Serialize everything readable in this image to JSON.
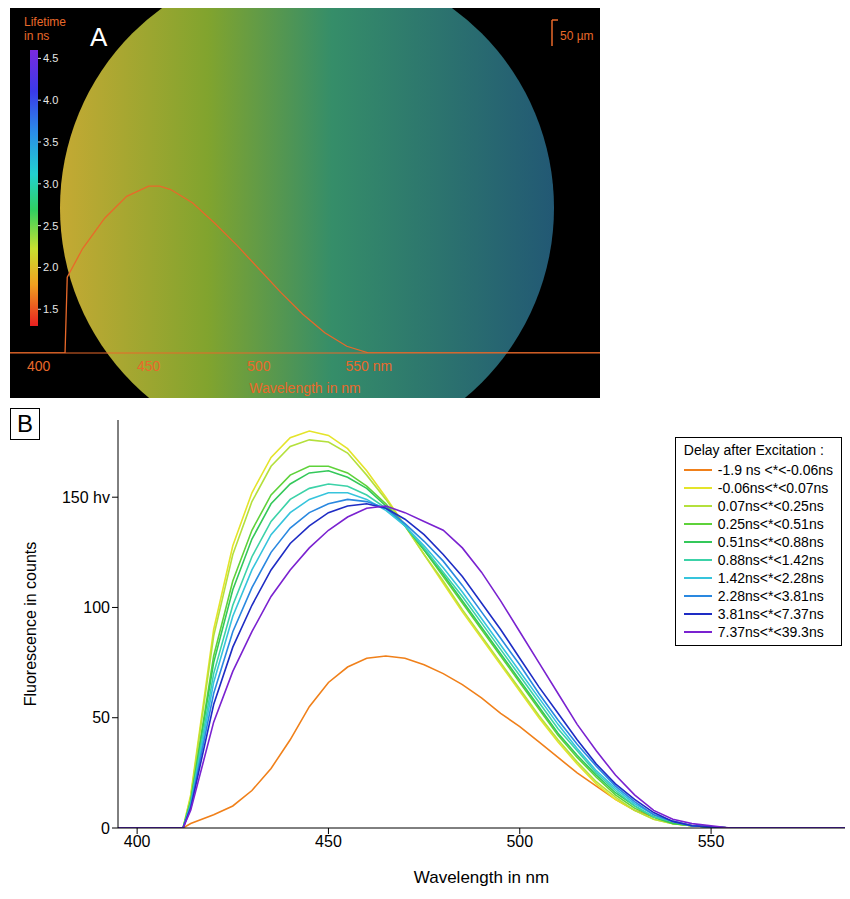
{
  "chart_data": [
    {
      "type": "line",
      "panel_label": "A",
      "scale_bar": "50 µm",
      "xlabel": "Wavelength in nm",
      "x": [
        387,
        412,
        413,
        420,
        430,
        440,
        450,
        455,
        460,
        470,
        480,
        490,
        500,
        510,
        520,
        530,
        540,
        550,
        655
      ],
      "values": [
        0,
        0,
        45,
        62,
        80,
        93,
        99,
        99,
        97,
        89,
        77,
        64,
        50,
        36,
        23,
        12,
        4,
        0,
        0
      ],
      "color": "#e8692a",
      "xlim": [
        387,
        655
      ],
      "xticks": [
        400,
        450,
        500,
        {
          "value": 550,
          "label": "550 nm"
        }
      ],
      "ylim": [
        0,
        200
      ],
      "tick_labels": "x",
      "colorbar": {
        "label": "Lifetime in ns",
        "range": [
          1.3,
          4.6
        ],
        "ticks": [
          1.5,
          {
            "value": 2,
            "label": "2.0"
          },
          2.5,
          {
            "value": 3,
            "label": "3.0"
          },
          3.5,
          {
            "value": 4,
            "label": "4.0"
          },
          4.5
        ]
      }
    },
    {
      "type": "line",
      "panel_label": "B",
      "xlabel": "Wavelength in nm",
      "ylabel": "Fluorescence in counts",
      "x": [
        395,
        405,
        412,
        414,
        420,
        425,
        430,
        435,
        440,
        445,
        450,
        455,
        460,
        465,
        470,
        475,
        480,
        485,
        490,
        495,
        500,
        505,
        510,
        515,
        520,
        525,
        530,
        535,
        540,
        545,
        550,
        555,
        560,
        585
      ],
      "series": [
        {
          "name": "-1.9 ns <*<-0.06ns",
          "color": "#f0801a",
          "values": [
            0,
            0,
            0,
            2,
            6,
            10,
            17,
            27,
            40,
            55,
            66,
            73,
            77,
            78,
            77,
            74,
            70,
            65,
            59,
            52,
            46,
            39,
            32,
            25,
            19,
            13,
            8,
            5,
            2,
            1,
            0.5,
            0,
            0,
            0
          ]
        },
        {
          "name": "-0.06ns<*<0.07ns",
          "color": "#e4e42a",
          "values": [
            0,
            0,
            0,
            15,
            90,
            128,
            152,
            168,
            177,
            180,
            178,
            172,
            162,
            150,
            137,
            124,
            111,
            98,
            86,
            74,
            62,
            50,
            39,
            29,
            20,
            13,
            8,
            4,
            2,
            1,
            0.5,
            0,
            0,
            0
          ]
        },
        {
          "name": "0.07ns<*<0.25ns",
          "color": "#b4e03c",
          "values": [
            0,
            0,
            0,
            14,
            87,
            124,
            148,
            164,
            173,
            176,
            175,
            170,
            160,
            149,
            137,
            124,
            112,
            99,
            87,
            75,
            63,
            51,
            40,
            30,
            21,
            14,
            8,
            4,
            2,
            1,
            0.5,
            0,
            0,
            0
          ]
        },
        {
          "name": "0.25ns<*<0.51ns",
          "color": "#5ed23a",
          "values": [
            0,
            0,
            0,
            12,
            78,
            112,
            135,
            151,
            160,
            164,
            164,
            161,
            155,
            147,
            137,
            126,
            114,
            102,
            90,
            78,
            66,
            54,
            42,
            32,
            23,
            15,
            9,
            5,
            2,
            1,
            0.5,
            0,
            0,
            0
          ]
        },
        {
          "name": "0.51ns<*<0.88ns",
          "color": "#34c85a",
          "values": [
            0,
            0,
            0,
            12,
            75,
            108,
            131,
            147,
            156,
            161,
            162,
            159,
            154,
            146,
            137,
            126,
            115,
            103,
            91,
            79,
            67,
            55,
            43,
            33,
            24,
            16,
            10,
            5,
            2,
            1,
            0.5,
            0,
            0,
            0
          ]
        },
        {
          "name": "0.88ns<*<1.42ns",
          "color": "#3cd2a8",
          "values": [
            0,
            0,
            0,
            11,
            70,
            101,
            123,
            139,
            149,
            154,
            156,
            155,
            151,
            145,
            137,
            127,
            116,
            105,
            93,
            81,
            69,
            57,
            45,
            35,
            25,
            17,
            10,
            5,
            3,
            1,
            0.5,
            0,
            0,
            0
          ]
        },
        {
          "name": "1.42ns<*<2.28ns",
          "color": "#36c4dc",
          "values": [
            0,
            0,
            0,
            10,
            66,
            96,
            117,
            133,
            143,
            149,
            152,
            152,
            149,
            144,
            137,
            128,
            118,
            107,
            95,
            83,
            71,
            59,
            47,
            36,
            26,
            18,
            11,
            6,
            3,
            1,
            0.5,
            0,
            0,
            0
          ]
        },
        {
          "name": "2.28ns<*<3.81ns",
          "color": "#2a88e0",
          "values": [
            0,
            0,
            0,
            10,
            61,
            89,
            109,
            125,
            136,
            143,
            147,
            149,
            148,
            145,
            138,
            130,
            121,
            110,
            98,
            86,
            74,
            61,
            49,
            38,
            28,
            19,
            12,
            6,
            3,
            1,
            0.5,
            0,
            0,
            0
          ]
        },
        {
          "name": "3.81ns<*<7.37ns",
          "color": "#1e2cc4",
          "values": [
            0,
            0,
            0,
            9,
            56,
            82,
            101,
            117,
            129,
            137,
            143,
            146,
            147,
            145,
            140,
            133,
            124,
            114,
            102,
            90,
            77,
            64,
            52,
            40,
            29,
            20,
            13,
            7,
            3,
            1,
            0.5,
            0,
            0,
            0
          ]
        },
        {
          "name": "7.37ns<*<39.3ns",
          "color": "#7a22d0",
          "values": [
            0,
            0,
            0,
            8,
            48,
            71,
            89,
            105,
            117,
            127,
            135,
            141,
            145,
            146,
            143,
            139,
            135,
            127,
            116,
            103,
            89,
            75,
            61,
            47,
            35,
            24,
            15,
            8,
            4,
            2,
            1,
            0,
            0,
            0
          ]
        }
      ],
      "xlim": [
        395,
        585
      ],
      "xticks": [
        400,
        450,
        500,
        550
      ],
      "ylim": [
        0,
        185
      ],
      "yticks": [
        0,
        50,
        100,
        {
          "value": 150,
          "label": "150 hv"
        }
      ],
      "legend": "upper right",
      "legend_title": "Delay after Excitation :"
    }
  ]
}
